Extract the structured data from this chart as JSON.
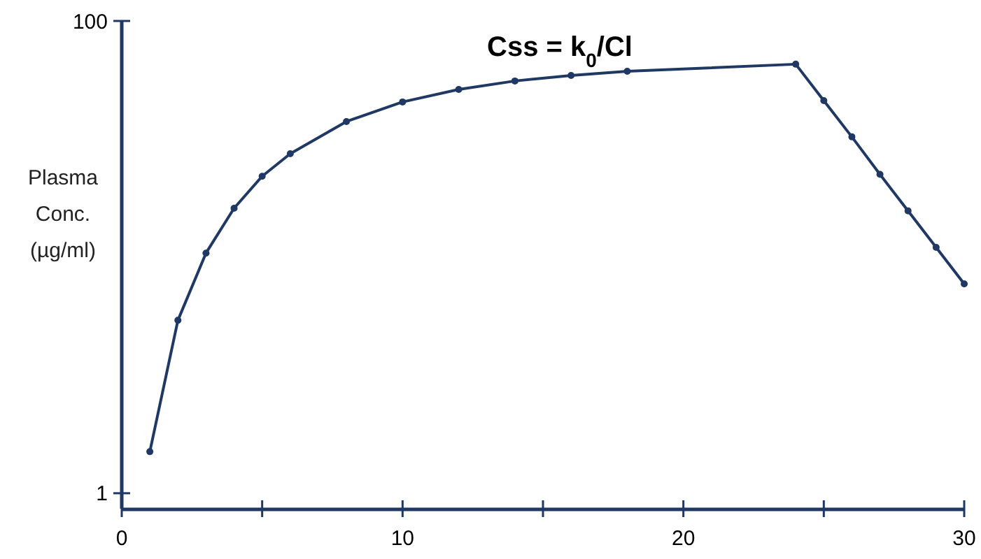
{
  "chart_data": {
    "type": "line",
    "title": "Css = k$_{0}$/Cl",
    "ylabel": "Plasma Conc. (µg/ml)",
    "x": [
      1,
      2,
      3,
      4,
      5,
      6,
      8,
      10,
      12,
      14,
      16,
      18,
      24,
      25,
      26,
      27,
      28,
      29,
      30
    ],
    "series": [
      {
        "color": "#1f3864",
        "values": [
          1.5,
          5.4,
          10.4,
          16.1,
          22.0,
          27.4,
          37.5,
          45.4,
          51.3,
          55.7,
          58.8,
          61.2,
          65.6,
          46.0,
          32.3,
          22.4,
          15.7,
          11.0,
          7.7
        ]
      }
    ],
    "xlim": [
      0,
      30
    ],
    "xticks": [
      0,
      {
        "value": 5,
        "label": null
      },
      10,
      {
        "value": 15,
        "label": null
      },
      20,
      {
        "value": 25,
        "label": null
      },
      30
    ],
    "ylim": [
      0.86,
      100
    ],
    "yticks": [
      1,
      100
    ],
    "log": true,
    "grid": false,
    "marker": "circle",
    "line_style": "solid"
  }
}
